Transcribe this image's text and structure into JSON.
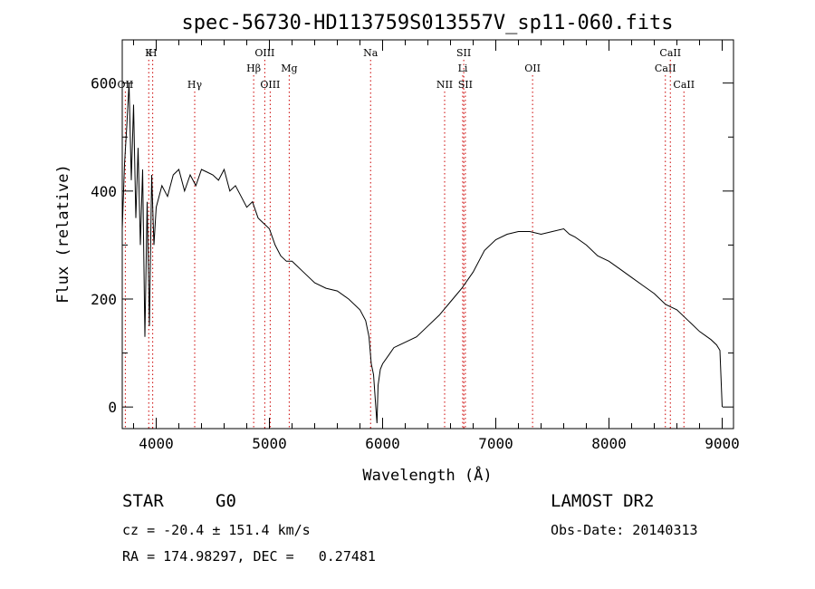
{
  "chart_data": {
    "type": "line",
    "title": "spec-56730-HD113759S013557V_sp11-060.fits",
    "xlabel": "Wavelength (Å)",
    "ylabel": "Flux (relative)",
    "xlim": [
      3700,
      9100
    ],
    "ylim": [
      -40,
      680
    ],
    "xticks": [
      4000,
      5000,
      6000,
      7000,
      8000,
      9000
    ],
    "yticks": [
      0,
      200,
      400,
      600
    ],
    "grid": false,
    "line_color": "#000000",
    "marker_color": "#cc0000",
    "series": [
      {
        "x": [
          3700,
          3720,
          3740,
          3760,
          3780,
          3800,
          3820,
          3840,
          3860,
          3880,
          3900,
          3920,
          3940,
          3960,
          3980,
          4000,
          4050,
          4100,
          4150,
          4200,
          4250,
          4300,
          4350,
          4400,
          4450,
          4500,
          4550,
          4600,
          4650,
          4700,
          4750,
          4800,
          4850,
          4900,
          4950,
          5000,
          5050,
          5100,
          5150,
          5200,
          5300,
          5400,
          5500,
          5600,
          5700,
          5800,
          5850,
          5880,
          5900,
          5920,
          5940,
          5950,
          5960,
          5980,
          6000,
          6050,
          6100,
          6200,
          6300,
          6400,
          6500,
          6600,
          6700,
          6800,
          6900,
          7000,
          7100,
          7200,
          7300,
          7400,
          7500,
          7600,
          7650,
          7700,
          7800,
          7900,
          8000,
          8100,
          8200,
          8300,
          8400,
          8500,
          8600,
          8700,
          8800,
          8900,
          8950,
          8980,
          9000
        ],
        "y": [
          330,
          450,
          520,
          600,
          420,
          560,
          350,
          480,
          300,
          440,
          130,
          380,
          150,
          430,
          300,
          370,
          410,
          390,
          430,
          440,
          400,
          430,
          410,
          440,
          435,
          430,
          420,
          440,
          400,
          410,
          390,
          370,
          380,
          350,
          340,
          330,
          300,
          280,
          270,
          270,
          250,
          230,
          220,
          215,
          200,
          180,
          160,
          130,
          80,
          60,
          0,
          -30,
          40,
          70,
          80,
          95,
          110,
          120,
          130,
          150,
          170,
          195,
          220,
          250,
          290,
          310,
          320,
          325,
          325,
          320,
          325,
          330,
          320,
          315,
          300,
          280,
          270,
          255,
          240,
          225,
          210,
          190,
          180,
          160,
          140,
          125,
          115,
          105,
          0
        ]
      }
    ],
    "line_markers": [
      {
        "label": "OII",
        "wl": 3727,
        "row": 2,
        "color": "#cc0000"
      },
      {
        "label": "K",
        "wl": 3934,
        "row": 0,
        "color": "#cc0000"
      },
      {
        "label": "H",
        "wl": 3969,
        "row": 0,
        "color": "#cc0000"
      },
      {
        "label": "Hγ",
        "wl": 4340,
        "row": 2,
        "color": "#cc0000"
      },
      {
        "label": "Hβ",
        "wl": 4861,
        "row": 1,
        "color": "#cc0000"
      },
      {
        "label": "OIII",
        "wl": 4959,
        "row": 0,
        "color": "#cc0000"
      },
      {
        "label": "OIII",
        "wl": 5007,
        "row": 2,
        "color": "#cc0000"
      },
      {
        "label": "Mg",
        "wl": 5175,
        "row": 1,
        "color": "#cc0000"
      },
      {
        "label": "Na",
        "wl": 5894,
        "row": 0,
        "color": "#cc0000"
      },
      {
        "label": "NII",
        "wl": 6548,
        "row": 2,
        "color": "#cc0000"
      },
      {
        "label": "Li",
        "wl": 6708,
        "row": 1,
        "color": "#cc0000"
      },
      {
        "label": "SII",
        "wl": 6717,
        "row": 0,
        "color": "#cc0000"
      },
      {
        "label": "SII",
        "wl": 6731,
        "row": 2,
        "color": "#cc0000"
      },
      {
        "label": "OII",
        "wl": 7325,
        "row": 1,
        "color": "#cc0000"
      },
      {
        "label": "CaII",
        "wl": 8498,
        "row": 1,
        "color": "#cc0000"
      },
      {
        "label": "CaII",
        "wl": 8542,
        "row": 0,
        "color": "#cc0000"
      },
      {
        "label": "CaII",
        "wl": 8662,
        "row": 2,
        "color": "#cc0000"
      }
    ]
  },
  "info": {
    "object_type": "STAR",
    "subclass": "G0",
    "survey": "LAMOST DR2",
    "cz": "cz = -20.4 ± 151.4 km/s",
    "obs_date": "Obs-Date: 20140313",
    "coords": "RA = 174.98297, DEC =   0.27481"
  }
}
